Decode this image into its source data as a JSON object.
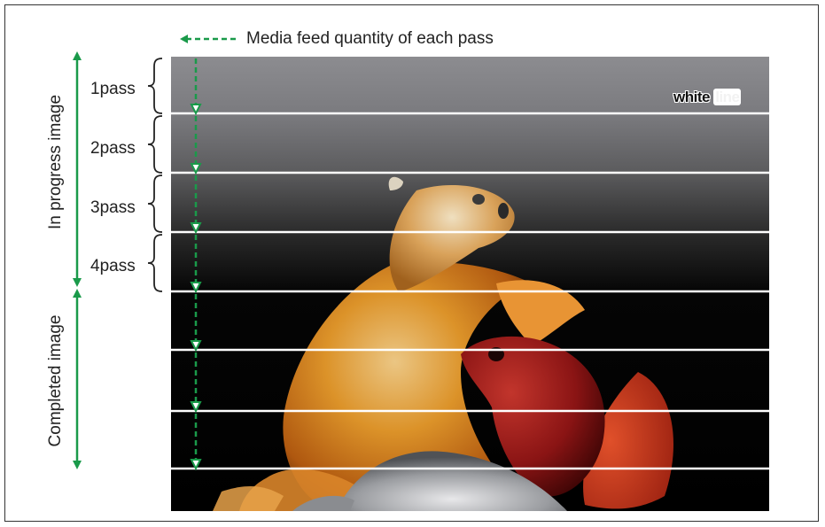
{
  "legend": {
    "label": "Media feed quantity of each pass",
    "line_color": "#1a9a4a"
  },
  "labels": {
    "in_progress": "In progress image",
    "completed": "Completed image",
    "white_line_word1": "white",
    "white_line_word2": "line"
  },
  "passes": [
    "1pass",
    "2pass",
    "3pass",
    "4pass"
  ],
  "colors": {
    "arrow": "#1a9a4a",
    "band_light": "#8f8f93",
    "band_dark": "#000000"
  }
}
